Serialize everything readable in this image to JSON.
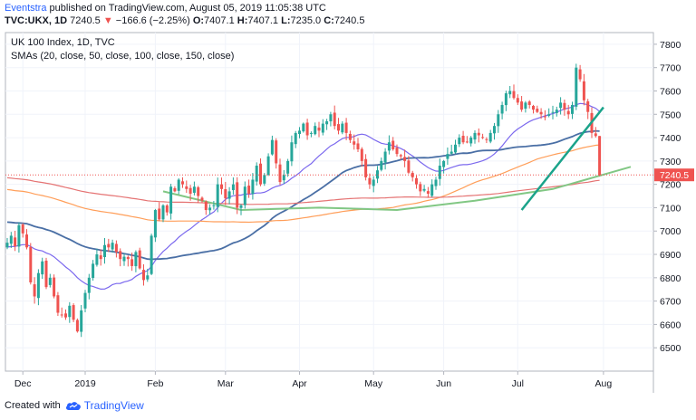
{
  "header": {
    "author": "Eventstra",
    "published": " published on TradingView.com, August 05, 2019 11:05:38 UTC",
    "symbol": "TVC:UKX, 1D",
    "last": "7240.5",
    "change": "−166.6 (−2.25%)",
    "open_label": "O:",
    "open": "7407.1",
    "high_label": "H:",
    "high": "7407.1",
    "low_label": "L:",
    "low": "7235.0",
    "close_label": "C:",
    "close": "7240.5"
  },
  "footer": {
    "created_with": "Created with",
    "brand": "TradingView"
  },
  "colors": {
    "up": "#26a69a",
    "down": "#ef5350",
    "sma20": "#7b68ee",
    "sma50": "#4a6fa5",
    "sma100": "#ff9e59",
    "sma150": "#e57373",
    "sma200": "#81c784",
    "trendline": "#1aa38a"
  },
  "chart_data": {
    "type": "candlestick",
    "title": "UK 100 Index, 1D, TVC",
    "subtitle": "SMAs (20, close, 50, close, 100, close, 150, close)",
    "ylim": [
      6400,
      7850
    ],
    "y_ticks": [
      6500,
      6600,
      6700,
      6800,
      6900,
      7000,
      7100,
      7200,
      7300,
      7400,
      7500,
      7600,
      7700,
      7800
    ],
    "x_ticks": [
      "Dec",
      "2019",
      "Feb",
      "Mar",
      "Apr",
      "May",
      "Jun",
      "Jul",
      "Aug"
    ],
    "x_tick_bars": [
      4,
      20,
      38,
      56,
      75,
      94,
      112,
      131,
      153
    ],
    "last_price_label": "7240.5",
    "last_price": 7240.5,
    "closes": [
      6950,
      6980,
      6935,
      7025,
      6990,
      6930,
      6780,
      6720,
      6820,
      6870,
      6760,
      6800,
      6720,
      6650,
      6640,
      6630,
      6680,
      6620,
      6570,
      6660,
      6735,
      6800,
      6860,
      6900,
      6880,
      6940,
      6930,
      6950,
      6910,
      6880,
      6890,
      6880,
      6850,
      6910,
      6840,
      6790,
      6810,
      6980,
      7090,
      7050,
      7110,
      7080,
      7190,
      7170,
      7220,
      7200,
      7180,
      7160,
      7190,
      7150,
      7130,
      7090,
      7100,
      7110,
      7200,
      7180,
      7140,
      7170,
      7200,
      7100,
      7110,
      7190,
      7160,
      7220,
      7280,
      7200,
      7240,
      7320,
      7390,
      7290,
      7210,
      7240,
      7300,
      7380,
      7420,
      7430,
      7460,
      7410,
      7420,
      7450,
      7430,
      7460,
      7470,
      7500,
      7450,
      7430,
      7460,
      7420,
      7390,
      7370,
      7350,
      7300,
      7230,
      7200,
      7220,
      7260,
      7300,
      7340,
      7380,
      7350,
      7330,
      7320,
      7300,
      7250,
      7230,
      7200,
      7170,
      7180,
      7160,
      7200,
      7220,
      7280,
      7300,
      7330,
      7340,
      7370,
      7400,
      7380,
      7380,
      7400,
      7420,
      7410,
      7400,
      7390,
      7420,
      7450,
      7500,
      7540,
      7590,
      7600,
      7570,
      7550,
      7520,
      7550,
      7540,
      7520,
      7510,
      7500,
      7490,
      7500,
      7510,
      7520,
      7550,
      7520,
      7500,
      7540,
      7700,
      7650,
      7560,
      7510,
      7420,
      7407,
      7240
    ],
    "sma_start": {
      "SMA20": 6930,
      "SMA50": 7040,
      "SMA100": 7180,
      "SMA150": 7230
    },
    "sma200_approx": [
      [
        40,
        7170
      ],
      [
        60,
        7090
      ],
      [
        80,
        7100
      ],
      [
        100,
        7090
      ],
      [
        120,
        7130
      ],
      [
        140,
        7180
      ],
      [
        160,
        7275
      ]
    ],
    "trendline": {
      "from": [
        132,
        7090
      ],
      "to": [
        153,
        7530
      ]
    }
  }
}
